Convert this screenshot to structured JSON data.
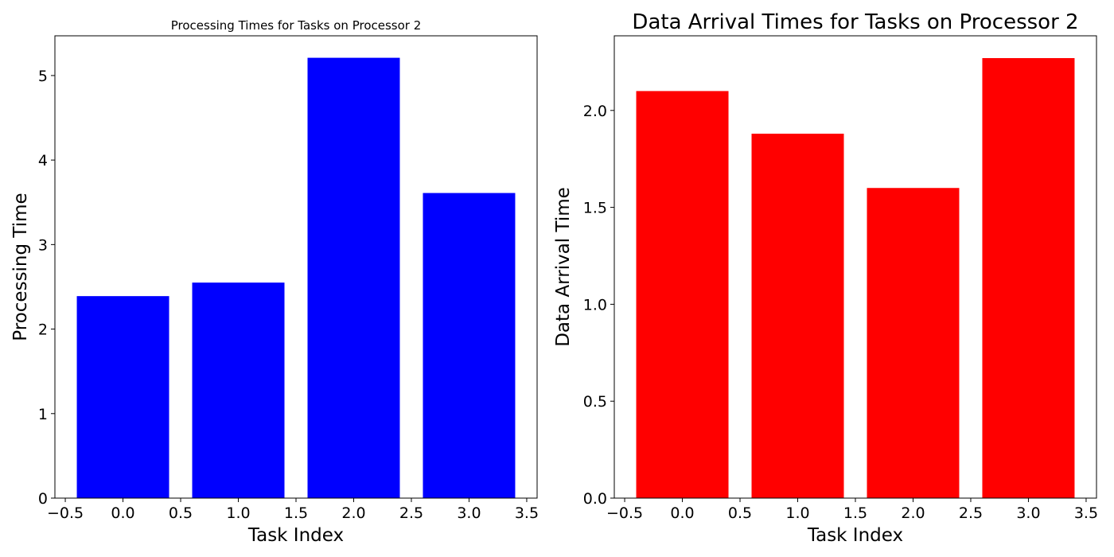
{
  "chart_data": [
    {
      "type": "bar",
      "title": "Processing Times for Tasks on Processor 2",
      "xlabel": "Task Index",
      "ylabel": "Processing Time",
      "x": [
        0,
        1,
        2,
        3
      ],
      "values": [
        2.39,
        2.55,
        5.21,
        3.61
      ],
      "bar_width": 0.8,
      "color": "#0000ff",
      "xlim": [
        -0.59,
        3.59
      ],
      "ylim": [
        0,
        5.47
      ],
      "xticks": [
        -0.5,
        0.0,
        0.5,
        1.0,
        1.5,
        2.0,
        2.5,
        3.0,
        3.5
      ],
      "xtick_labels": [
        "−0.5",
        "0.0",
        "0.5",
        "1.0",
        "1.5",
        "2.0",
        "2.5",
        "3.0",
        "3.5"
      ],
      "yticks": [
        0,
        1,
        2,
        3,
        4,
        5
      ],
      "ytick_labels": [
        "0",
        "1",
        "2",
        "3",
        "4",
        "5"
      ],
      "grid": false,
      "legend": "none"
    },
    {
      "type": "bar",
      "title": "Data Arrival Times for Tasks on Processor 2",
      "xlabel": "Task Index",
      "ylabel": "Data Arrival Time",
      "x": [
        0,
        1,
        2,
        3
      ],
      "values": [
        2.1,
        1.88,
        1.6,
        2.27
      ],
      "bar_width": 0.8,
      "color": "#ff0000",
      "xlim": [
        -0.59,
        3.59
      ],
      "ylim": [
        0,
        2.385
      ],
      "xticks": [
        -0.5,
        0.0,
        0.5,
        1.0,
        1.5,
        2.0,
        2.5,
        3.0,
        3.5
      ],
      "xtick_labels": [
        "−0.5",
        "0.0",
        "0.5",
        "1.0",
        "1.5",
        "2.0",
        "2.5",
        "3.0",
        "3.5"
      ],
      "yticks": [
        0.0,
        0.5,
        1.0,
        1.5,
        2.0
      ],
      "ytick_labels": [
        "0.0",
        "0.5",
        "1.0",
        "1.5",
        "2.0"
      ],
      "grid": false,
      "legend": "none"
    }
  ]
}
